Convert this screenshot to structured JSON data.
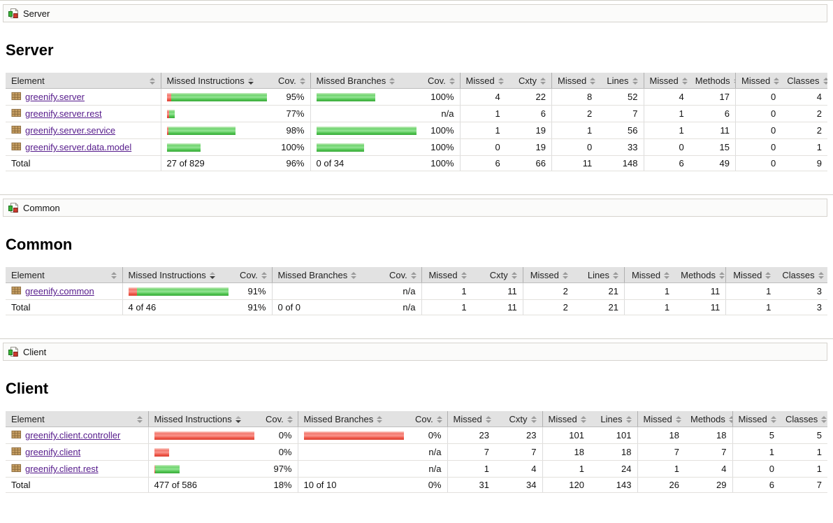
{
  "report_type": "coverage-report",
  "total_label": "Total",
  "icons": {
    "breadcrumb_icon": "report-group-icon",
    "package_icon": "package-grid-icon",
    "sort_icon": "sort-arrows-icon"
  },
  "colors": {
    "covered_green": "#4FC44F",
    "missed_red": "#EE5546",
    "link_purple": "#551A8B",
    "header_gray": "#E2E2E2"
  },
  "columns": [
    {
      "label": "Element",
      "sorted": false
    },
    {
      "label": "Missed Instructions",
      "sorted": true
    },
    {
      "label": "Cov.",
      "sorted": false
    },
    {
      "label": "Missed Branches",
      "sorted": false
    },
    {
      "label": "Cov.",
      "sorted": false
    },
    {
      "label": "Missed",
      "sorted": false
    },
    {
      "label": "Cxty",
      "sorted": false
    },
    {
      "label": "Missed",
      "sorted": false
    },
    {
      "label": "Lines",
      "sorted": false
    },
    {
      "label": "Missed",
      "sorted": false
    },
    {
      "label": "Methods",
      "sorted": false
    },
    {
      "label": "Missed",
      "sorted": false
    },
    {
      "label": "Classes",
      "sorted": false
    }
  ],
  "sections": [
    {
      "breadcrumb": "Server",
      "title": "Server",
      "rows": [
        {
          "name": "greenify.server",
          "instr_bar": {
            "red": 7,
            "green": 139
          },
          "instr_cov": "95%",
          "branch_bar": {
            "red": 0,
            "green": 84
          },
          "branch_cov": "100%",
          "values": [
            "4",
            "22",
            "8",
            "52",
            "4",
            "17",
            "0",
            "4"
          ]
        },
        {
          "name": "greenify.server.rest",
          "instr_bar": {
            "red": 3,
            "green": 8
          },
          "instr_cov": "77%",
          "branch_bar": {
            "red": 0,
            "green": 0
          },
          "branch_cov": "n/a",
          "values": [
            "1",
            "6",
            "2",
            "7",
            "1",
            "6",
            "0",
            "2"
          ]
        },
        {
          "name": "greenify.server.service",
          "instr_bar": {
            "red": 2,
            "green": 96
          },
          "instr_cov": "98%",
          "branch_bar": {
            "red": 0,
            "green": 148
          },
          "branch_cov": "100%",
          "values": [
            "1",
            "19",
            "1",
            "56",
            "1",
            "11",
            "0",
            "2"
          ]
        },
        {
          "name": "greenify.server.data.model",
          "instr_bar": {
            "red": 0,
            "green": 48
          },
          "instr_cov": "100%",
          "branch_bar": {
            "red": 0,
            "green": 68
          },
          "branch_cov": "100%",
          "values": [
            "0",
            "19",
            "0",
            "33",
            "0",
            "15",
            "0",
            "1"
          ]
        }
      ],
      "total": {
        "instr": "27 of 829",
        "instr_cov": "96%",
        "branch": "0 of 34",
        "branch_cov": "100%",
        "values": [
          "6",
          "66",
          "11",
          "148",
          "6",
          "49",
          "0",
          "9"
        ]
      }
    },
    {
      "breadcrumb": "Common",
      "title": "Common",
      "rows": [
        {
          "name": "greenify.common",
          "instr_bar": {
            "red": 13,
            "green": 137
          },
          "instr_cov": "91%",
          "branch_bar": {
            "red": 0,
            "green": 0
          },
          "branch_cov": "n/a",
          "values": [
            "1",
            "11",
            "2",
            "21",
            "1",
            "11",
            "1",
            "3"
          ]
        }
      ],
      "total": {
        "instr": "4 of 46",
        "instr_cov": "91%",
        "branch": "0 of 0",
        "branch_cov": "n/a",
        "values": [
          "1",
          "11",
          "2",
          "21",
          "1",
          "11",
          "1",
          "3"
        ]
      }
    },
    {
      "breadcrumb": "Client",
      "title": "Client",
      "rows": [
        {
          "name": "greenify.client.controller",
          "instr_bar": {
            "red": 145,
            "green": 0
          },
          "instr_cov": "0%",
          "branch_bar": {
            "red": 145,
            "green": 0
          },
          "branch_cov": "0%",
          "values": [
            "23",
            "23",
            "101",
            "101",
            "18",
            "18",
            "5",
            "5"
          ]
        },
        {
          "name": "greenify.client",
          "instr_bar": {
            "red": 21,
            "green": 0
          },
          "instr_cov": "0%",
          "branch_bar": {
            "red": 0,
            "green": 0
          },
          "branch_cov": "n/a",
          "values": [
            "7",
            "7",
            "18",
            "18",
            "7",
            "7",
            "1",
            "1"
          ]
        },
        {
          "name": "greenify.client.rest",
          "instr_bar": {
            "red": 1,
            "green": 35
          },
          "instr_cov": "97%",
          "branch_bar": {
            "red": 0,
            "green": 0
          },
          "branch_cov": "n/a",
          "values": [
            "1",
            "4",
            "1",
            "24",
            "1",
            "4",
            "0",
            "1"
          ]
        }
      ],
      "total": {
        "instr": "477 of 586",
        "instr_cov": "18%",
        "branch": "10 of 10",
        "branch_cov": "0%",
        "values": [
          "31",
          "34",
          "120",
          "143",
          "26",
          "29",
          "6",
          "7"
        ]
      }
    }
  ]
}
